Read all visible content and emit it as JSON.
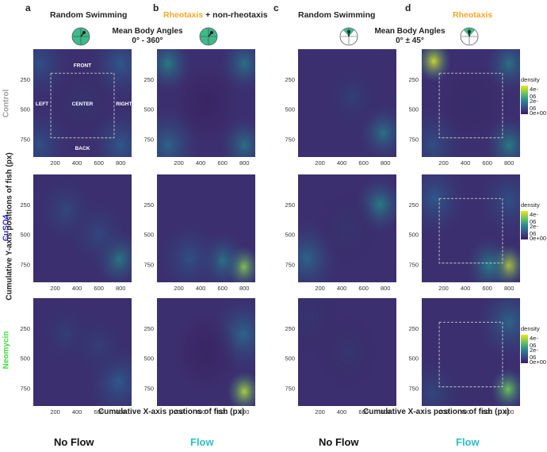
{
  "panels": [
    {
      "letter": "a",
      "title_plain": "Random Swimming",
      "title_highlight": ""
    },
    {
      "letter": "b",
      "title_plain": " + non-rheotaxis",
      "title_highlight": "Rheotaxis"
    },
    {
      "letter": "c",
      "title_plain": "Random Swimming",
      "title_highlight": ""
    },
    {
      "letter": "d",
      "title_plain": "",
      "title_highlight": "Rheotaxis"
    }
  ],
  "angles": [
    {
      "title": "Mean Body Angles",
      "range": "0° - 360°"
    },
    {
      "title": "Mean Body Angles",
      "range": "0° ± 45°"
    }
  ],
  "rows": [
    {
      "label": "Control",
      "color": "#9e9e9e"
    },
    {
      "label": "CuSO4",
      "color": "#2a2ad6"
    },
    {
      "label": "Neomycin",
      "color": "#3fdc3f"
    }
  ],
  "zone_labels": {
    "front": "FRONT",
    "back": "BACK",
    "left": "LEFT",
    "right": "RIGHT",
    "center": "CENTER"
  },
  "axes": {
    "ylabel": "Cumulative Y-axis positions of fish (px)",
    "xlabel": "Cumulative X-axis postions of fish (px)",
    "xticks": [
      "200",
      "400",
      "600",
      "800"
    ],
    "yticks": [
      "250",
      "500",
      "750"
    ]
  },
  "conditions": [
    {
      "label": "No Flow",
      "color": "#111111"
    },
    {
      "label": "Flow",
      "color": "#2bbfc6"
    },
    {
      "label": "No Flow",
      "color": "#111111"
    },
    {
      "label": "Flow",
      "color": "#2bbfc6"
    }
  ],
  "legend": {
    "title": "density",
    "ticks": [
      "4e-06",
      "2e-06",
      "0e+00"
    ]
  },
  "colors": {
    "viridis_low": "#3b1b5c",
    "viridis_mid": "#2a8c8c",
    "viridis_high": "#f0e51e",
    "orange": "#f5a623"
  },
  "chart_data": {
    "type": "heatmap",
    "description_rows": [
      "Control",
      "CuSO4",
      "Neomycin"
    ],
    "columns": [
      "Random Swimming (No Flow)",
      "Rheotaxis + non-rheotaxis (Flow)",
      "Random Swimming (No Flow)",
      "Rheotaxis (Flow)"
    ],
    "xlabel": "Cumulative X-axis postions of fish (px)",
    "ylabel": "Cumulative Y-axis positions of fish (px)",
    "xlim": [
      0,
      900
    ],
    "ylim": [
      0,
      900
    ],
    "x_ticks": [
      200,
      400,
      600,
      800
    ],
    "y_ticks": [
      250,
      500,
      750
    ],
    "color_scale": {
      "name": "density",
      "ticks": [
        0,
        2e-06,
        4e-06
      ]
    },
    "hotspots": [
      [
        [
          [
            60,
            120,
            0.3
          ],
          [
            800,
            120,
            0.35
          ],
          [
            800,
            800,
            0.35
          ],
          [
            60,
            800,
            0.3
          ],
          [
            450,
            450,
            0.15
          ]
        ],
        [
          [
            100,
            120,
            0.5
          ],
          [
            800,
            120,
            0.45
          ],
          [
            800,
            800,
            0.45
          ],
          [
            100,
            800,
            0.4
          ],
          [
            450,
            450,
            0.05
          ]
        ],
        [
          [
            780,
            700,
            0.45
          ],
          [
            500,
            400,
            0.2
          ]
        ],
        [
          [
            110,
            100,
            0.95
          ],
          [
            800,
            120,
            0.45
          ],
          [
            800,
            800,
            0.5
          ],
          [
            100,
            800,
            0.3
          ],
          [
            450,
            450,
            0.1
          ]
        ]
      ],
      [
        [
          [
            780,
            700,
            0.5
          ],
          [
            300,
            300,
            0.25
          ],
          [
            600,
            500,
            0.25
          ]
        ],
        [
          [
            790,
            770,
            0.85
          ],
          [
            600,
            720,
            0.45
          ],
          [
            300,
            700,
            0.3
          ]
        ],
        [
          [
            750,
            250,
            0.5
          ],
          [
            80,
            700,
            0.4
          ],
          [
            450,
            450,
            0.15
          ]
        ],
        [
          [
            790,
            760,
            0.95
          ],
          [
            620,
            760,
            0.5
          ],
          [
            120,
            200,
            0.35
          ],
          [
            800,
            220,
            0.3
          ]
        ]
      ],
      [
        [
          [
            780,
            700,
            0.35
          ],
          [
            300,
            300,
            0.2
          ],
          [
            600,
            400,
            0.2
          ]
        ],
        [
          [
            800,
            780,
            0.9
          ],
          [
            790,
            300,
            0.4
          ],
          [
            450,
            450,
            0.05
          ]
        ],
        [
          [
            450,
            450,
            0.15
          ],
          [
            100,
            150,
            0.15
          ]
        ],
        [
          [
            790,
            760,
            0.8
          ],
          [
            800,
            200,
            0.4
          ],
          [
            100,
            800,
            0.25
          ]
        ]
      ]
    ]
  }
}
